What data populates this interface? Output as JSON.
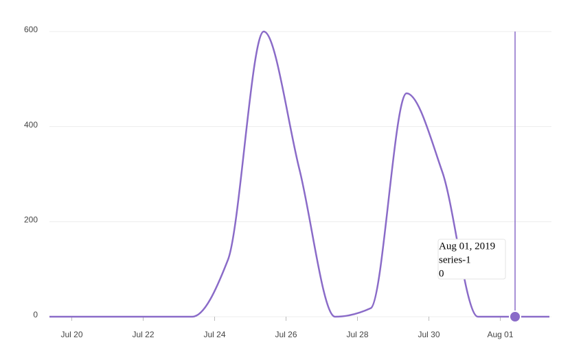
{
  "chart_data": {
    "type": "line",
    "x": [
      "2019-07-19",
      "2019-07-20",
      "2019-07-21",
      "2019-07-22",
      "2019-07-23",
      "2019-07-24",
      "2019-07-25",
      "2019-07-26",
      "2019-07-27",
      "2019-07-28",
      "2019-07-29",
      "2019-07-30",
      "2019-07-31",
      "2019-08-01",
      "2019-08-02"
    ],
    "series": [
      {
        "name": "series-1",
        "color": "#8a6bc8",
        "values": [
          0,
          0,
          0,
          0,
          0,
          120,
          600,
          310,
          0,
          18,
          470,
          305,
          0,
          0,
          0
        ]
      }
    ],
    "xlim": [
      "2019-07-19",
      "2019-08-02"
    ],
    "xticks": [
      {
        "value": "2019-07-19T15:00Z",
        "label": "Jul 20"
      },
      {
        "value": "2019-07-21T15:00Z",
        "label": "Jul 22"
      },
      {
        "value": "2019-07-23T15:00Z",
        "label": "Jul 24"
      },
      {
        "value": "2019-07-25T15:00Z",
        "label": "Jul 26"
      },
      {
        "value": "2019-07-27T15:00Z",
        "label": "Jul 28"
      },
      {
        "value": "2019-07-29T15:00Z",
        "label": "Jul 30"
      },
      {
        "value": "2019-07-31T15:00Z",
        "label": "Aug 01"
      }
    ],
    "ylim": [
      0,
      600
    ],
    "yticks": [
      0,
      200,
      400,
      600
    ],
    "grid": true,
    "tooltip_title": "Aug 01, 2019"
  }
}
